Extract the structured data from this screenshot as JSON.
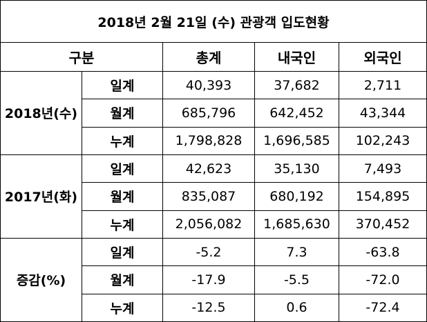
{
  "title": "2018년 2월 21일 (수) 관광객 입도현황",
  "header": [
    "구분",
    "총계",
    "내국인",
    "외국인"
  ],
  "groups": [
    {
      "label": "2018년(수)",
      "rows": [
        {
          "label": "일계",
          "values": [
            "40,393",
            "37,682",
            "2,711"
          ]
        },
        {
          "label": "월계",
          "values": [
            "685,796",
            "642,452",
            "43,344"
          ]
        },
        {
          "label": "누계",
          "values": [
            "1,798,828",
            "1,696,585",
            "102,243"
          ]
        }
      ]
    },
    {
      "label": "2017년(화)",
      "rows": [
        {
          "label": "일계",
          "values": [
            "42,623",
            "35,130",
            "7,493"
          ]
        },
        {
          "label": "월계",
          "values": [
            "835,087",
            "680,192",
            "154,895"
          ]
        },
        {
          "label": "누계",
          "values": [
            "2,056,082",
            "1,685,630",
            "370,452"
          ]
        }
      ]
    },
    {
      "label": "증감(%)",
      "rows": [
        {
          "label": "일계",
          "values": [
            "-5.2",
            "7.3",
            "-63.8"
          ]
        },
        {
          "label": "월계",
          "values": [
            "-17.9",
            "-5.5",
            "-72.0"
          ]
        },
        {
          "label": "누계",
          "values": [
            "-12.5",
            "0.6",
            "-72.4"
          ]
        }
      ]
    }
  ]
}
